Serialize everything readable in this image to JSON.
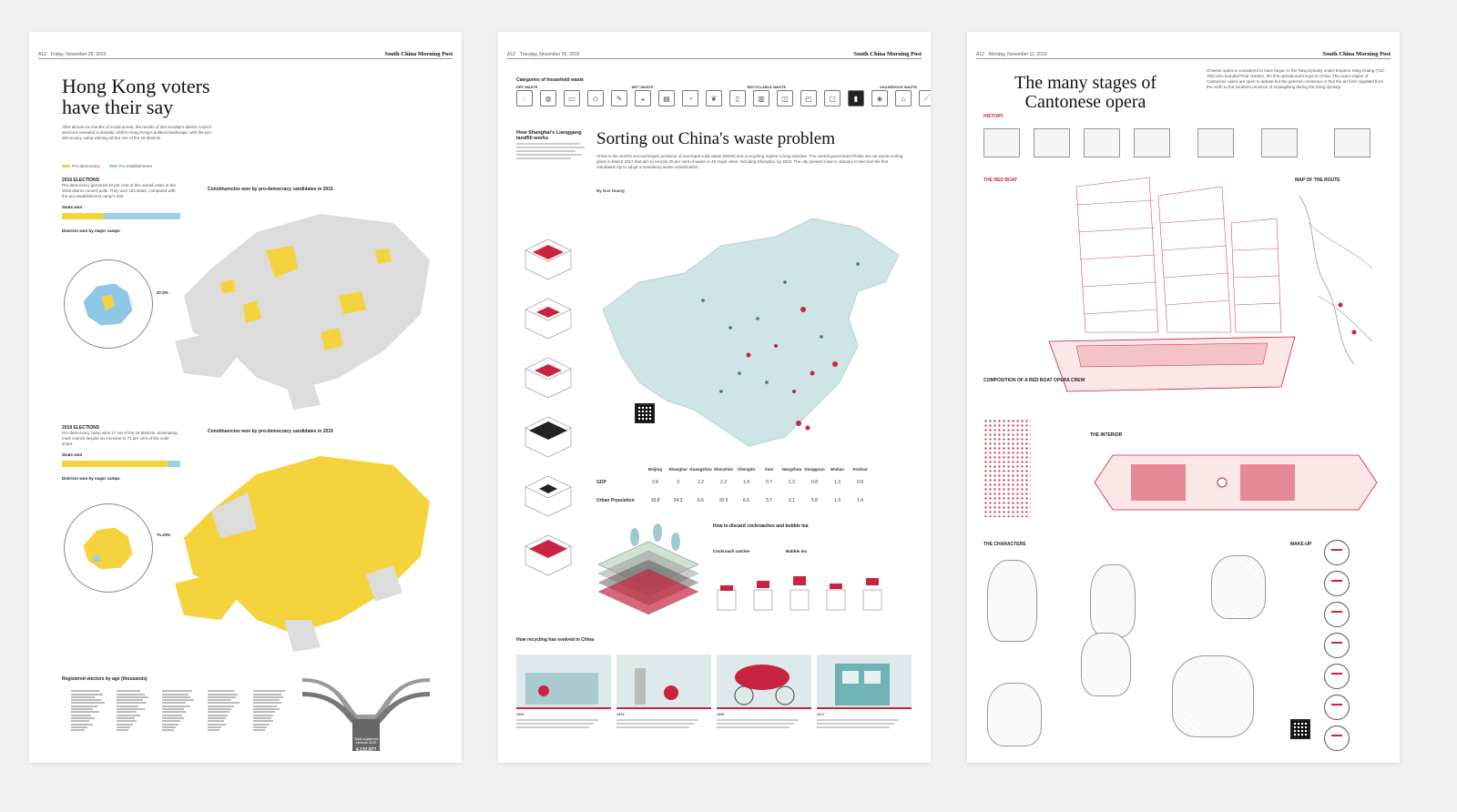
{
  "pages": [
    {
      "page_no": "A12",
      "date": "Friday, November 29, 2019",
      "brand": "South China Morning Post",
      "headline_line1": "Hong Kong voters",
      "headline_line2": "have their say",
      "deck": "After almost six months of social unrest, the results of last Sunday's district council elections revealed a dramatic shift in Hong Kong's political landscape, with the pro-democracy camp winning all but one of the 18 districts.",
      "legend_a": "Pro-democracy",
      "legend_b": "Pro-establishment",
      "elections_2015_title": "2015 ELECTIONS",
      "elections_2015_text": "Pro-democracy garnered 40 per cent of the overall votes in the 2015 district council polls. They won 126 seats, compared with the pro-establishment camp's 292.",
      "seats_won": "Seats won",
      "map_2015_title": "Constituencies won by pro-democracy candidates in 2015",
      "elections_2019_title": "2019 ELECTIONS",
      "elections_2019_text": "Pro-democracy camp wins 17 out of the 18 districts, dominating most council despite an increase to 71 per cent of the voter share.",
      "map_2019_title": "Constituencies won by pro-democracy candidates in 2019",
      "districts_by_camp": "Districts won by major camps",
      "voters_title": "Registered electors by age (thousands)",
      "total_label": "Total registered electors 2019",
      "total_value": "4,132,977",
      "pct_2015": "47.0%",
      "pct_2019": "71.23%"
    },
    {
      "page_no": "A12",
      "date": "Tuesday, November 26, 2019",
      "brand": "South China Morning Post",
      "categories_title": "Categories of household waste",
      "cat_dry": "DRY WASTE",
      "cat_wet": "WET WASTE",
      "cat_recyclable": "RECYCLABLE WASTE",
      "cat_hazardous": "HAZARDOUS WASTE",
      "side_title": "How Shanghai's Lianggang landfill works",
      "headline": "Sorting out China's waste problem",
      "deck": "China is the world's second-largest producer of municipal solid waste (MSW) and a recycling regime is long overdue. The central government finally set out waste-sorting plans in March 2017 that aim to recycle 35 per cent of waste in 46 major cities, including Shanghai, by 2020. The city passed a law in January to become the first mandated city to adopt a mandatory waste classification.",
      "byline": "By Dan Huang",
      "gdp_label": "GDP",
      "pop_label": "Urban Population",
      "cities": [
        "Beijing",
        "Shanghai",
        "Guangzhou",
        "Shenzhen",
        "Chengdu",
        "Xian",
        "Hangzhou",
        "Dongguan",
        "Wuhan",
        "Foshan"
      ],
      "gdp": [
        "2.8",
        "3",
        "2.2",
        "2.2",
        "1.4",
        "0.7",
        "1.3",
        "0.8",
        "1.3",
        "0.9"
      ],
      "pop": [
        "18.8",
        "24.2",
        "6.6",
        "10.5",
        "6.6",
        "3.7",
        "2.1",
        "5.8",
        "1.3",
        "1.4"
      ],
      "cockroach_title": "How to discard cockroaches and bubble tea",
      "cockroach_catcher": "Cockroach catcher",
      "bubble_tea": "Bubble tea",
      "recycling_title": "How recycling has evolved in China",
      "eras": [
        "1950",
        "1978",
        "1990",
        "2017"
      ]
    },
    {
      "page_no": "A12",
      "date": "Monday, November 11, 2019",
      "brand": "South China Morning Post",
      "headline_line1": "The many stages of",
      "headline_line2": "Cantonese opera",
      "deck": "Chinese opera is considered to have begun in the Tang Dynasty under Emperor Ming Huang (712-755) who founded Pear Garden, the first operational troupe in China. The exact origins of Cantonese opera are open to debate but the general consensus is that the art form migrated from the north to the southern province of Guangdong during the Song dynasty.",
      "history": "HISTORY",
      "red_boat": "THE RED BOAT",
      "map_of_route": "MAP OF THE ROUTE",
      "composition": "COMPOSITION OF A RED BOAT OPERA CREW",
      "interior": "THE INTERIOR",
      "characters": "THE CHARACTERS",
      "makeup": "MAKE-UP"
    }
  ]
}
